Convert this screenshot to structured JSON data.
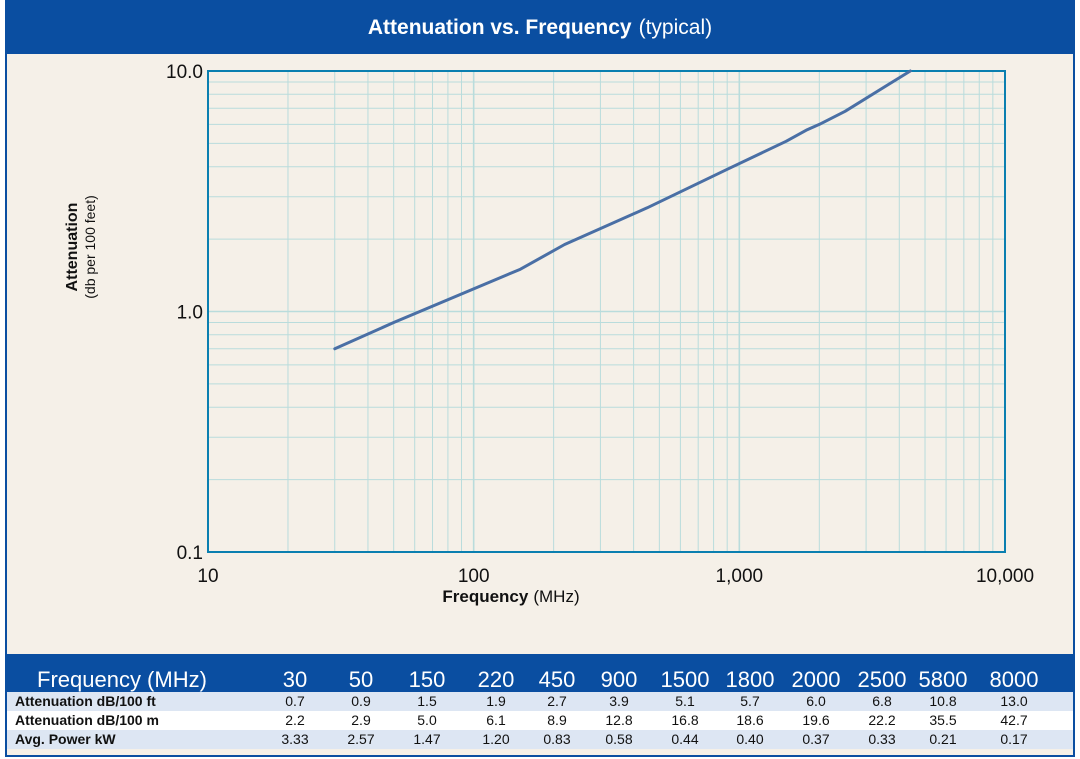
{
  "header": {
    "title_bold": "Attenuation vs. Frequency",
    "title_normal": "(typical)"
  },
  "chart_data": {
    "type": "line",
    "xscale": "log",
    "yscale": "log",
    "xlim": [
      10,
      10000
    ],
    "ylim": [
      0.1,
      10.0
    ],
    "xlabel_bold": "Frequency",
    "xlabel_normal": "(MHz)",
    "ylabel_bold": "Attenuation",
    "ylabel_normal": "(db per 100 feet)",
    "x_ticks": [
      {
        "value": 10,
        "label": "10"
      },
      {
        "value": 100,
        "label": "100"
      },
      {
        "value": 1000,
        "label": "1,000"
      },
      {
        "value": 10000,
        "label": "10,000"
      }
    ],
    "y_ticks": [
      {
        "value": 0.1,
        "label": "0.1"
      },
      {
        "value": 1.0,
        "label": "1.0"
      },
      {
        "value": 10.0,
        "label": "10.0"
      }
    ],
    "grid": true,
    "series": [
      {
        "color": "#4a6fa5",
        "x": [
          30,
          50,
          150,
          220,
          450,
          900,
          1500,
          1800,
          2000,
          2500,
          4400
        ],
        "y": [
          0.7,
          0.9,
          1.5,
          1.9,
          2.7,
          3.9,
          5.1,
          5.7,
          6.0,
          6.8,
          10.0
        ]
      }
    ]
  },
  "table": {
    "header_label": "Frequency (MHz)",
    "frequencies": [
      "30",
      "50",
      "150",
      "220",
      "450",
      "900",
      "1500",
      "1800",
      "2000",
      "2500",
      "5800",
      "8000"
    ],
    "rows": [
      {
        "label": "Attenuation dB/100 ft",
        "values": [
          "0.7",
          "0.9",
          "1.5",
          "1.9",
          "2.7",
          "3.9",
          "5.1",
          "5.7",
          "6.0",
          "6.8",
          "10.8",
          "13.0"
        ]
      },
      {
        "label": "Attenuation dB/100 m",
        "values": [
          "2.2",
          "2.9",
          "5.0",
          "6.1",
          "8.9",
          "12.8",
          "16.8",
          "18.6",
          "19.6",
          "22.2",
          "35.5",
          "42.7"
        ]
      },
      {
        "label": "Avg. Power kW",
        "values": [
          "3.33",
          "2.57",
          "1.47",
          "1.20",
          "0.83",
          "0.58",
          "0.44",
          "0.40",
          "0.37",
          "0.33",
          "0.21",
          "0.17"
        ]
      }
    ]
  },
  "colors": {
    "brand_blue": "#0a4ea1",
    "background": "#f5f0e8",
    "grid": "#b9dcdc",
    "line": "#4a6fa5"
  }
}
